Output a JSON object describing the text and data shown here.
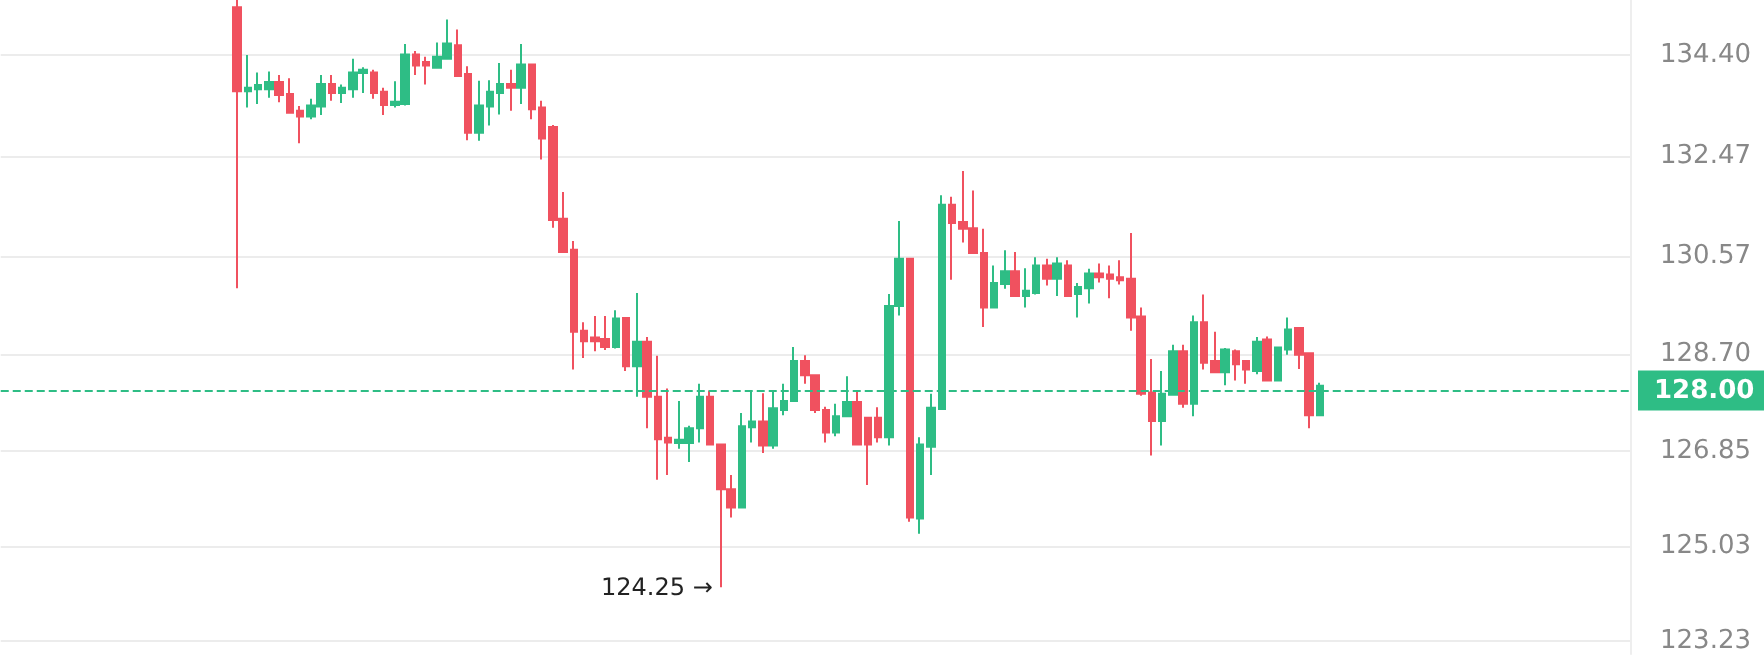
{
  "chart_data": {
    "type": "candlestick",
    "categories": [
      null,
      null,
      null,
      null,
      null,
      null,
      null,
      null,
      null,
      null,
      null,
      null,
      null,
      null,
      null,
      null,
      null,
      null,
      null,
      null,
      null,
      null,
      null,
      null,
      null,
      null,
      null,
      null,
      null,
      null,
      null,
      null,
      null,
      null,
      null,
      null,
      null,
      null,
      null,
      null,
      null,
      null,
      null,
      null,
      null,
      null,
      null,
      null,
      null,
      null,
      null,
      null,
      null,
      null,
      null,
      null,
      null,
      null,
      null,
      null,
      null,
      null,
      null,
      null,
      null,
      null,
      null,
      null,
      null,
      null,
      null,
      null,
      null,
      null,
      null,
      null,
      null,
      null,
      null,
      null,
      null,
      null,
      null,
      null,
      null,
      null,
      null,
      null,
      null,
      null,
      null,
      null,
      null,
      null,
      null,
      null,
      null,
      null,
      null,
      null,
      null,
      null,
      null,
      null,
      null,
      null,
      null,
      null,
      null,
      null,
      null,
      null,
      null,
      null,
      null,
      null,
      null,
      null,
      null,
      null,
      null,
      null,
      null,
      null,
      null,
      null,
      null,
      null,
      null,
      null,
      null,
      null,
      null,
      null,
      null,
      null,
      null,
      null,
      null,
      null,
      null,
      null,
      null,
      null,
      null,
      null,
      null,
      null,
      null,
      null,
      null,
      null,
      null,
      null,
      null
    ],
    "ohlc": [
      null,
      null,
      null,
      null,
      null,
      null,
      null,
      null,
      null,
      null,
      null,
      null,
      null,
      null,
      null,
      null,
      null,
      null,
      null,
      null,
      null,
      null,
      [
        135.3,
        135.44,
        129.95,
        133.7
      ],
      [
        133.7,
        134.39,
        133.39,
        133.77
      ],
      [
        133.74,
        134.06,
        133.46,
        133.82
      ],
      [
        133.74,
        134.08,
        133.58,
        133.88
      ],
      [
        133.88,
        134.01,
        133.49,
        133.63
      ],
      [
        133.65,
        133.95,
        133.29,
        133.29
      ],
      [
        133.33,
        133.42,
        132.71,
        133.22
      ],
      [
        133.22,
        133.56,
        133.17,
        133.43
      ],
      [
        133.41,
        134.01,
        133.25,
        133.84
      ],
      [
        133.84,
        134.01,
        133.52,
        133.67
      ],
      [
        133.67,
        133.83,
        133.48,
        133.77
      ],
      [
        133.74,
        134.32,
        133.58,
        134.06
      ],
      [
        134.05,
        134.16,
        133.67,
        134.11
      ],
      [
        134.06,
        134.11,
        133.56,
        133.67
      ],
      [
        133.69,
        133.77,
        133.25,
        133.44
      ],
      [
        133.44,
        133.89,
        133.39,
        133.5
      ],
      [
        133.46,
        134.6,
        133.43,
        134.4
      ],
      [
        134.4,
        134.47,
        134.01,
        134.19
      ],
      [
        134.26,
        134.36,
        133.83,
        134.19
      ],
      [
        134.15,
        134.63,
        134.15,
        134.36
      ],
      [
        134.32,
        135.07,
        134.32,
        134.61
      ],
      [
        134.58,
        134.88,
        133.99,
        133.99
      ],
      [
        134.03,
        134.18,
        132.77,
        132.91
      ],
      [
        132.91,
        133.9,
        132.76,
        133.43
      ],
      [
        133.41,
        133.91,
        133.05,
        133.69
      ],
      [
        133.67,
        134.24,
        133.26,
        133.84
      ],
      [
        133.84,
        134.11,
        133.33,
        133.77
      ],
      [
        133.77,
        134.6,
        133.46,
        134.21
      ],
      [
        134.21,
        134.21,
        133.17,
        133.36
      ],
      [
        133.39,
        133.52,
        132.4,
        132.8
      ],
      [
        133.02,
        133.06,
        131.1,
        131.25
      ],
      [
        131.27,
        131.78,
        130.64,
        130.64
      ],
      [
        130.68,
        130.85,
        128.4,
        129.12
      ],
      [
        129.14,
        129.3,
        128.62,
        128.94
      ],
      [
        129.01,
        129.42,
        128.75,
        128.94
      ],
      [
        128.98,
        129.42,
        128.77,
        128.83
      ],
      [
        128.83,
        129.53,
        128.8,
        129.37
      ],
      [
        129.38,
        129.38,
        128.37,
        128.46
      ],
      [
        128.46,
        129.86,
        127.88,
        128.93
      ],
      [
        128.93,
        129.02,
        127.28,
        127.88
      ],
      [
        127.88,
        128.66,
        126.3,
        127.07
      ],
      [
        127.1,
        128.04,
        126.39,
        127.01
      ],
      [
        127.0,
        127.8,
        126.89,
        127.06
      ],
      [
        127.0,
        127.33,
        126.64,
        127.28
      ],
      [
        127.28,
        128.13,
        127.01,
        127.88
      ],
      [
        127.88,
        128.0,
        126.97,
        126.97
      ],
      [
        126.97,
        126.98,
        124.25,
        126.12
      ],
      [
        126.12,
        126.39,
        125.58,
        125.77
      ],
      [
        125.77,
        127.57,
        125.77,
        127.32
      ],
      [
        127.3,
        127.98,
        127.01,
        127.41
      ],
      [
        127.41,
        127.95,
        126.81,
        126.95
      ],
      [
        126.95,
        127.98,
        126.89,
        127.66
      ],
      [
        127.63,
        128.13,
        127.53,
        127.8
      ],
      [
        127.8,
        128.83,
        127.8,
        128.56
      ],
      [
        128.56,
        128.67,
        128.13,
        128.29
      ],
      [
        128.29,
        128.29,
        127.57,
        127.63
      ],
      [
        127.63,
        127.69,
        127.01,
        127.2
      ],
      [
        127.2,
        127.75,
        127.13,
        127.51
      ],
      [
        127.51,
        128.27,
        127.51,
        127.78
      ],
      [
        127.78,
        127.98,
        126.97,
        126.97
      ],
      [
        127.48,
        127.48,
        126.2,
        126.97
      ],
      [
        127.48,
        127.68,
        127.01,
        127.11
      ],
      [
        127.11,
        129.84,
        126.95,
        129.61
      ],
      [
        129.61,
        131.23,
        129.43,
        130.51
      ],
      [
        130.51,
        130.51,
        125.5,
        125.58
      ],
      [
        125.56,
        127.11,
        125.27,
        126.97
      ],
      [
        126.93,
        127.94,
        126.39,
        127.67
      ],
      [
        127.65,
        131.72,
        127.65,
        131.54
      ],
      [
        131.54,
        131.69,
        130.11,
        131.19
      ],
      [
        131.21,
        132.18,
        130.82,
        131.08
      ],
      [
        131.09,
        131.81,
        130.62,
        130.62
      ],
      [
        130.62,
        131.08,
        129.21,
        129.58
      ],
      [
        129.58,
        130.38,
        129.58,
        130.05
      ],
      [
        130.03,
        130.67,
        129.94,
        130.27
      ],
      [
        130.27,
        130.64,
        129.78,
        129.8
      ],
      [
        129.8,
        130.33,
        129.58,
        129.9
      ],
      [
        129.86,
        130.54,
        129.83,
        130.38
      ],
      [
        130.38,
        130.51,
        130.0,
        130.13
      ],
      [
        130.13,
        130.54,
        129.8,
        130.42
      ],
      [
        130.38,
        130.48,
        129.8,
        129.8
      ],
      [
        129.84,
        130.05,
        129.39,
        129.97
      ],
      [
        129.95,
        130.32,
        129.66,
        130.23
      ],
      [
        130.23,
        130.42,
        130.06,
        130.16
      ],
      [
        130.21,
        130.38,
        129.76,
        130.13
      ],
      [
        130.16,
        130.48,
        130.02,
        130.1
      ],
      [
        130.13,
        131.0,
        129.14,
        129.39
      ],
      [
        129.41,
        129.58,
        127.9,
        127.94
      ],
      [
        127.96,
        128.6,
        126.76,
        127.42
      ],
      [
        127.42,
        128.37,
        126.95,
        127.94
      ],
      [
        127.92,
        128.87,
        127.92,
        128.75
      ],
      [
        128.75,
        128.87,
        127.67,
        127.75
      ],
      [
        127.75,
        129.43,
        127.51,
        129.3
      ],
      [
        129.3,
        129.83,
        128.4,
        128.53
      ],
      [
        128.56,
        129.12,
        128.35,
        128.35
      ],
      [
        128.35,
        128.81,
        128.1,
        128.78
      ],
      [
        128.75,
        128.78,
        128.19,
        128.5
      ],
      [
        128.56,
        128.56,
        128.13,
        128.4
      ],
      [
        128.37,
        129.02,
        128.31,
        128.93
      ],
      [
        128.97,
        129.03,
        128.19,
        128.19
      ],
      [
        128.19,
        128.83,
        128.19,
        128.82
      ],
      [
        128.78,
        129.39,
        128.68,
        129.16
      ],
      [
        129.19,
        129.19,
        128.41,
        128.68
      ],
      [
        128.71,
        128.71,
        127.28,
        127.53
      ],
      [
        127.53,
        128.15,
        127.53,
        128.09
      ],
      null,
      null,
      null,
      null,
      null,
      null,
      null,
      null,
      null,
      null,
      null,
      null,
      null,
      null,
      null,
      null,
      null,
      null,
      null,
      null,
      null,
      null,
      null,
      null,
      null,
      null,
      null,
      null,
      null
    ],
    "ylim": [
      122.98,
      135.44
    ],
    "yticks": [
      {
        "value": 123.23,
        "label": "123.23"
      },
      {
        "value": 125.03,
        "label": "125.03"
      },
      {
        "value": 126.85,
        "label": "126.85"
      },
      {
        "value": 128.7,
        "label": "128.70"
      },
      {
        "value": 130.57,
        "label": "130.57"
      },
      {
        "value": 132.47,
        "label": "132.47"
      },
      {
        "value": 134.4,
        "label": "134.40"
      }
    ],
    "grid": "y",
    "ref_lines": [
      {
        "axis": "y",
        "value": 128.0,
        "label": "128.00",
        "color": "#2ebd85",
        "line_style": "dashed"
      }
    ],
    "annotations": [
      "124.25 →"
    ]
  }
}
